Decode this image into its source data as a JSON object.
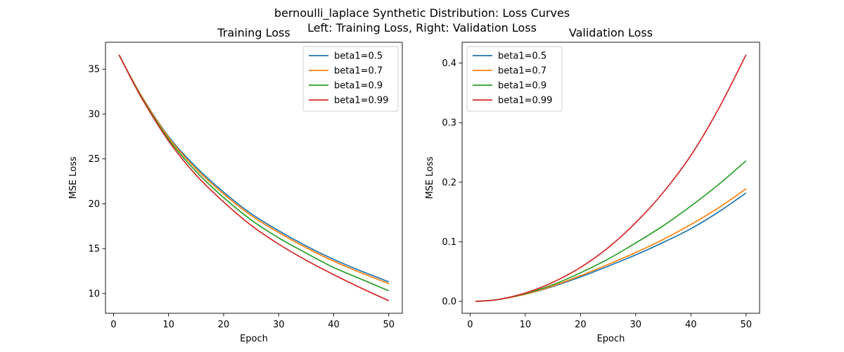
{
  "figure": {
    "suptitle_line1": "bernoulli_laplace Synthetic Distribution: Loss Curves",
    "suptitle_line2": "Left: Training Loss, Right: Validation Loss"
  },
  "chart_data": [
    {
      "type": "line",
      "title": "Training Loss",
      "xlabel": "Epoch",
      "ylabel": "MSE Loss",
      "xlim": [
        -1.45,
        52.45
      ],
      "ylim": [
        7.8,
        38.0
      ],
      "xticks": [
        0,
        10,
        20,
        30,
        40,
        50
      ],
      "yticks": [
        10,
        15,
        20,
        25,
        30,
        35
      ],
      "grid": false,
      "legend_position": "upper right",
      "x": [
        1,
        5,
        10,
        15,
        20,
        25,
        30,
        35,
        40,
        45,
        50
      ],
      "series": [
        {
          "name": "beta1=0.5",
          "color": "#1f77b4",
          "values": [
            36.6,
            32.1,
            27.5,
            24.1,
            21.3,
            18.9,
            17.0,
            15.3,
            13.8,
            12.5,
            11.3
          ]
        },
        {
          "name": "beta1=0.7",
          "color": "#ff7f0e",
          "values": [
            36.6,
            32.1,
            27.4,
            23.9,
            21.1,
            18.7,
            16.8,
            15.1,
            13.6,
            12.3,
            11.1
          ]
        },
        {
          "name": "beta1=0.9",
          "color": "#2ca02c",
          "values": [
            36.6,
            32.0,
            27.2,
            23.6,
            20.7,
            18.2,
            16.2,
            14.5,
            12.9,
            11.6,
            10.3
          ]
        },
        {
          "name": "beta1=0.99",
          "color": "#d62728",
          "values": [
            36.6,
            31.9,
            27.0,
            23.2,
            20.2,
            17.6,
            15.5,
            13.7,
            12.1,
            10.6,
            9.2
          ]
        }
      ]
    },
    {
      "type": "line",
      "title": "Validation Loss",
      "xlabel": "Epoch",
      "ylabel": "MSE Loss",
      "xlim": [
        -1.45,
        52.45
      ],
      "ylim": [
        -0.02,
        0.435
      ],
      "xticks": [
        0,
        10,
        20,
        30,
        40,
        50
      ],
      "yticks": [
        0.0,
        0.1,
        0.2,
        0.3,
        0.4
      ],
      "grid": false,
      "legend_position": "upper left",
      "x": [
        1,
        5,
        10,
        15,
        20,
        25,
        30,
        35,
        40,
        45,
        50
      ],
      "series": [
        {
          "name": "beta1=0.5",
          "color": "#1f77b4",
          "values": [
            0.0,
            0.003,
            0.012,
            0.025,
            0.041,
            0.059,
            0.078,
            0.099,
            0.122,
            0.15,
            0.182
          ]
        },
        {
          "name": "beta1=0.7",
          "color": "#ff7f0e",
          "values": [
            0.0,
            0.003,
            0.012,
            0.026,
            0.043,
            0.062,
            0.082,
            0.104,
            0.129,
            0.157,
            0.189
          ]
        },
        {
          "name": "beta1=0.9",
          "color": "#2ca02c",
          "values": [
            0.0,
            0.003,
            0.013,
            0.028,
            0.048,
            0.071,
            0.098,
            0.127,
            0.16,
            0.196,
            0.236
          ]
        },
        {
          "name": "beta1=0.99",
          "color": "#d62728",
          "values": [
            0.0,
            0.003,
            0.014,
            0.032,
            0.057,
            0.09,
            0.132,
            0.183,
            0.245,
            0.323,
            0.414
          ]
        }
      ]
    }
  ]
}
